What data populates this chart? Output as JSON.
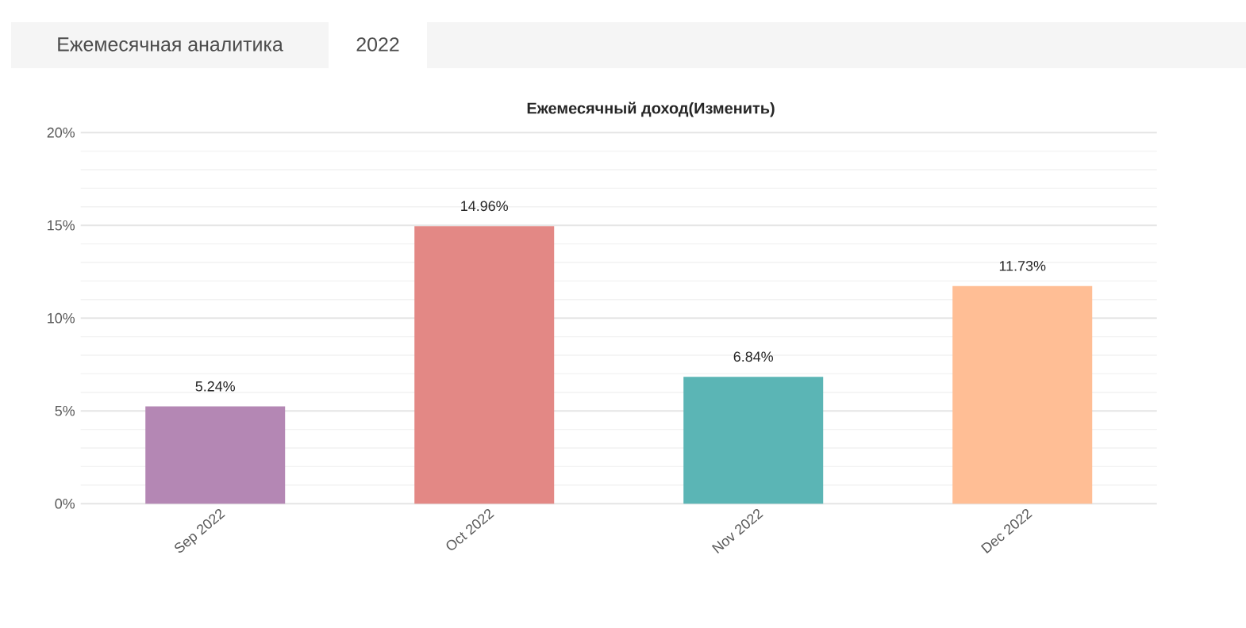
{
  "chart_data": {
    "type": "bar",
    "title": "Ежемесячный доход(Изменить)",
    "annotations": [
      "Ежемесячная аналитика",
      "2022"
    ],
    "categories": [
      "Sep 2022",
      "Oct 2022",
      "Nov 2022",
      "Dec 2022"
    ],
    "values": [
      5.24,
      14.96,
      6.84,
      11.73
    ],
    "colors": [
      "#b487b4",
      "#e38885",
      "#5bb5b5",
      "#ffbe95"
    ],
    "value_labels": [
      "5.24%",
      "14.96%",
      "6.84%",
      "11.73%"
    ],
    "ylim": [
      0,
      20
    ],
    "yticks": [
      {
        "value": 0,
        "label": "0%"
      },
      {
        "value": 5,
        "label": "5%"
      },
      {
        "value": 10,
        "label": "10%"
      },
      {
        "value": 15,
        "label": "15%"
      },
      {
        "value": 20,
        "label": "20%"
      }
    ],
    "grid": "y"
  }
}
